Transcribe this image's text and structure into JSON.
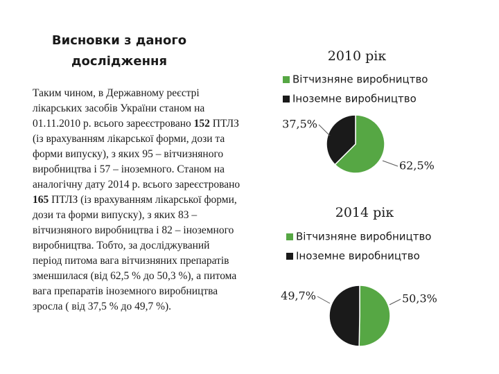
{
  "title": "Висновки з даного дослідження",
  "body": [
    "Таким чином, в Державному реєстрі лікарських засобів України станом на 01.11.2010 р. всього зареєстровано ",
    "152",
    " ПТЛЗ (із врахуванням лікарської форми, дози та форми випуску), з яких 95 – вітчизняного виробництва і 57 – іноземного. Станом на аналогічну дату 2014 р. всього зареєстровано ",
    "165",
    " ПТЛЗ (із врахуванням лікарської форми, дози та форми випуску), з яких 83 – вітчизняного виробництва і 82 – іноземного виробництва. Тобто, за досліджуваний період питома вага вітчизняних препаратів зменшилася (від 62,5 % до 50,3 %), а питома вага препаратів іноземного виробництва зросла ( від 37,5 % до 49,7 %)."
  ],
  "chart_data": [
    {
      "type": "pie",
      "title": "2010 рік",
      "categories": [
        "Вітчизняне виробництво",
        "Іноземне виробництво"
      ],
      "values": [
        62.5,
        37.5
      ],
      "value_labels": [
        "62,5%",
        "37,5%"
      ],
      "colors": [
        "#56a744",
        "#1a1a1a"
      ]
    },
    {
      "type": "pie",
      "title": "2014 рік",
      "categories": [
        "Вітчизняне виробництво",
        "Іноземне виробництво"
      ],
      "values": [
        50.3,
        49.7
      ],
      "value_labels": [
        "50,3%",
        "49,7%"
      ],
      "colors": [
        "#56a744",
        "#1a1a1a"
      ]
    }
  ]
}
